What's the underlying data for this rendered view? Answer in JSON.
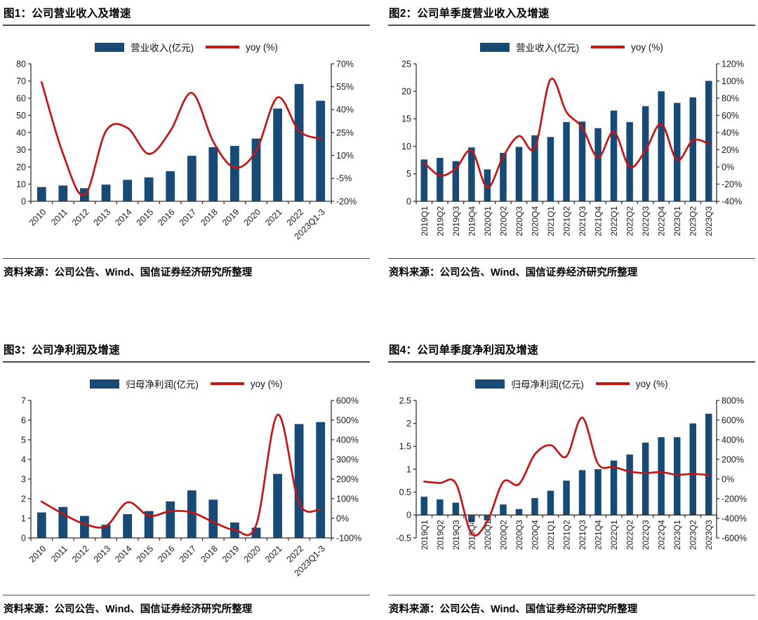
{
  "colors": {
    "bar": "#174a74",
    "line": "#c41414",
    "axis": "#333333",
    "tick_text": "#1a1a1a",
    "divider": "#4a4a4a"
  },
  "source_note": "资料来源：公司公告、Wind、国信证券经济研究所整理",
  "chart_data": [
    {
      "id": "fig1",
      "type": "bar+line",
      "title": "图1：公司营业收入及增速",
      "legend_position": "top",
      "categories": [
        "2010",
        "2011",
        "2012",
        "2013",
        "2014",
        "2015",
        "2016",
        "2017",
        "2018",
        "2019",
        "2020",
        "2021",
        "2022",
        "2023Q1-3"
      ],
      "series": [
        {
          "name": "营业收入(亿元)",
          "type": "bar",
          "axis": "left",
          "values": [
            8.3,
            9.2,
            7.6,
            9.7,
            12.5,
            13.9,
            17.5,
            26.5,
            31.5,
            32.2,
            36.5,
            54.0,
            68.3,
            58.5
          ]
        },
        {
          "name": "yoy (%)",
          "type": "line",
          "axis": "right",
          "values": [
            58,
            11,
            -16,
            26,
            28,
            11,
            26,
            51,
            19,
            2,
            13,
            48,
            26,
            21
          ]
        }
      ],
      "left_axis": {
        "ticks": [
          "0",
          "10",
          "20",
          "30",
          "40",
          "50",
          "60",
          "70",
          "80"
        ]
      },
      "right_axis": {
        "ticks": [
          "-20%",
          "-5%",
          "10%",
          "25%",
          "40%",
          "55%",
          "70%"
        ]
      },
      "x_label_rotation": 45,
      "source": "资料来源：公司公告、Wind、国信证券经济研究所整理"
    },
    {
      "id": "fig2",
      "type": "bar+line",
      "title": "图2：公司单季度营业收入及增速",
      "legend_position": "top",
      "categories": [
        "2019Q1",
        "2019Q2",
        "2019Q3",
        "2019Q4",
        "2020Q1",
        "2020Q2",
        "2020Q3",
        "2020Q4",
        "2021Q1",
        "2021Q2",
        "2021Q3",
        "2021Q4",
        "2022Q1",
        "2022Q2",
        "2022Q3",
        "2022Q4",
        "2023Q1",
        "2023Q2",
        "2023Q3"
      ],
      "series": [
        {
          "name": "营业收入(亿元)",
          "type": "bar",
          "axis": "left",
          "values": [
            7.6,
            7.9,
            7.3,
            9.8,
            5.8,
            8.8,
            9.9,
            12.0,
            11.7,
            14.4,
            14.5,
            13.3,
            16.5,
            14.4,
            17.3,
            20.0,
            17.9,
            18.9,
            21.9
          ]
        },
        {
          "name": "yoy (%)",
          "type": "line",
          "axis": "right",
          "values": [
            5,
            -10,
            -2,
            19,
            -24,
            12,
            36,
            22,
            102,
            64,
            46,
            11,
            41,
            0,
            19,
            50,
            8,
            31,
            27
          ]
        }
      ],
      "left_axis": {
        "ticks": [
          "0",
          "5",
          "10",
          "15",
          "20",
          "25"
        ]
      },
      "right_axis": {
        "ticks": [
          "-40%",
          "-20%",
          "0%",
          "20%",
          "40%",
          "60%",
          "80%",
          "100%",
          "120%"
        ]
      },
      "x_label_rotation": 90,
      "source": "资料来源：公司公告、Wind、国信证券经济研究所整理"
    },
    {
      "id": "fig3",
      "type": "bar+line",
      "title": "图3：公司净利润及增速",
      "legend_position": "top",
      "categories": [
        "2010",
        "2011",
        "2012",
        "2013",
        "2014",
        "2015",
        "2016",
        "2017",
        "2018",
        "2019",
        "2020",
        "2021",
        "2022",
        "2023Q1-3"
      ],
      "series": [
        {
          "name": "归母净利润(亿元)",
          "type": "bar",
          "axis": "left",
          "values": [
            1.3,
            1.58,
            1.12,
            0.67,
            1.21,
            1.37,
            1.86,
            2.42,
            1.95,
            0.79,
            0.52,
            3.26,
            5.8,
            5.9
          ]
        },
        {
          "name": "yoy (%)",
          "type": "line",
          "axis": "right",
          "values": [
            85,
            22,
            -29,
            -40,
            81,
            13,
            36,
            30,
            -19,
            -59,
            -34,
            527,
            78,
            45
          ]
        }
      ],
      "left_axis": {
        "ticks": [
          "0",
          "1",
          "2",
          "3",
          "4",
          "5",
          "6",
          "7"
        ]
      },
      "right_axis": {
        "ticks": [
          "-100%",
          "0%",
          "100%",
          "200%",
          "300%",
          "400%",
          "500%",
          "600%"
        ]
      },
      "x_label_rotation": 45,
      "source": "资料来源：公司公告、Wind、国信证券经济研究所整理"
    },
    {
      "id": "fig4",
      "type": "bar+line",
      "title": "图4：公司单季度净利润及增速",
      "legend_position": "top",
      "categories": [
        "2019Q1",
        "2019Q2",
        "2019Q3",
        "2019Q4",
        "2020Q1",
        "2020Q2",
        "2020Q3",
        "2020Q4",
        "2021Q1",
        "2021Q2",
        "2021Q3",
        "2021Q4",
        "2022Q1",
        "2022Q2",
        "2022Q3",
        "2022Q4",
        "2023Q1",
        "2023Q2",
        "2023Q3"
      ],
      "series": [
        {
          "name": "归母净利润(亿元)",
          "type": "bar",
          "axis": "left",
          "values": [
            0.4,
            0.34,
            0.27,
            -0.15,
            -0.12,
            0.23,
            0.13,
            0.37,
            0.53,
            0.75,
            0.98,
            1.0,
            1.19,
            1.32,
            1.58,
            1.7,
            1.7,
            2.0,
            2.21
          ]
        },
        {
          "name": "yoy (%)",
          "type": "line",
          "axis": "right",
          "values": [
            -26,
            -40,
            -42,
            -555,
            -430,
            -30,
            -52,
            250,
            345,
            230,
            625,
            155,
            123,
            76,
            61,
            70,
            43,
            52,
            40
          ]
        }
      ],
      "left_axis": {
        "ticks": [
          "-0.5",
          "0",
          "0.5",
          "1",
          "1.5",
          "2",
          "2.5"
        ]
      },
      "right_axis": {
        "ticks": [
          "-600%",
          "-400%",
          "-200%",
          "0%",
          "200%",
          "400%",
          "600%",
          "800%"
        ]
      },
      "x_label_rotation": 90,
      "source": "资料来源：公司公告、Wind、国信证券经济研究所整理"
    }
  ]
}
